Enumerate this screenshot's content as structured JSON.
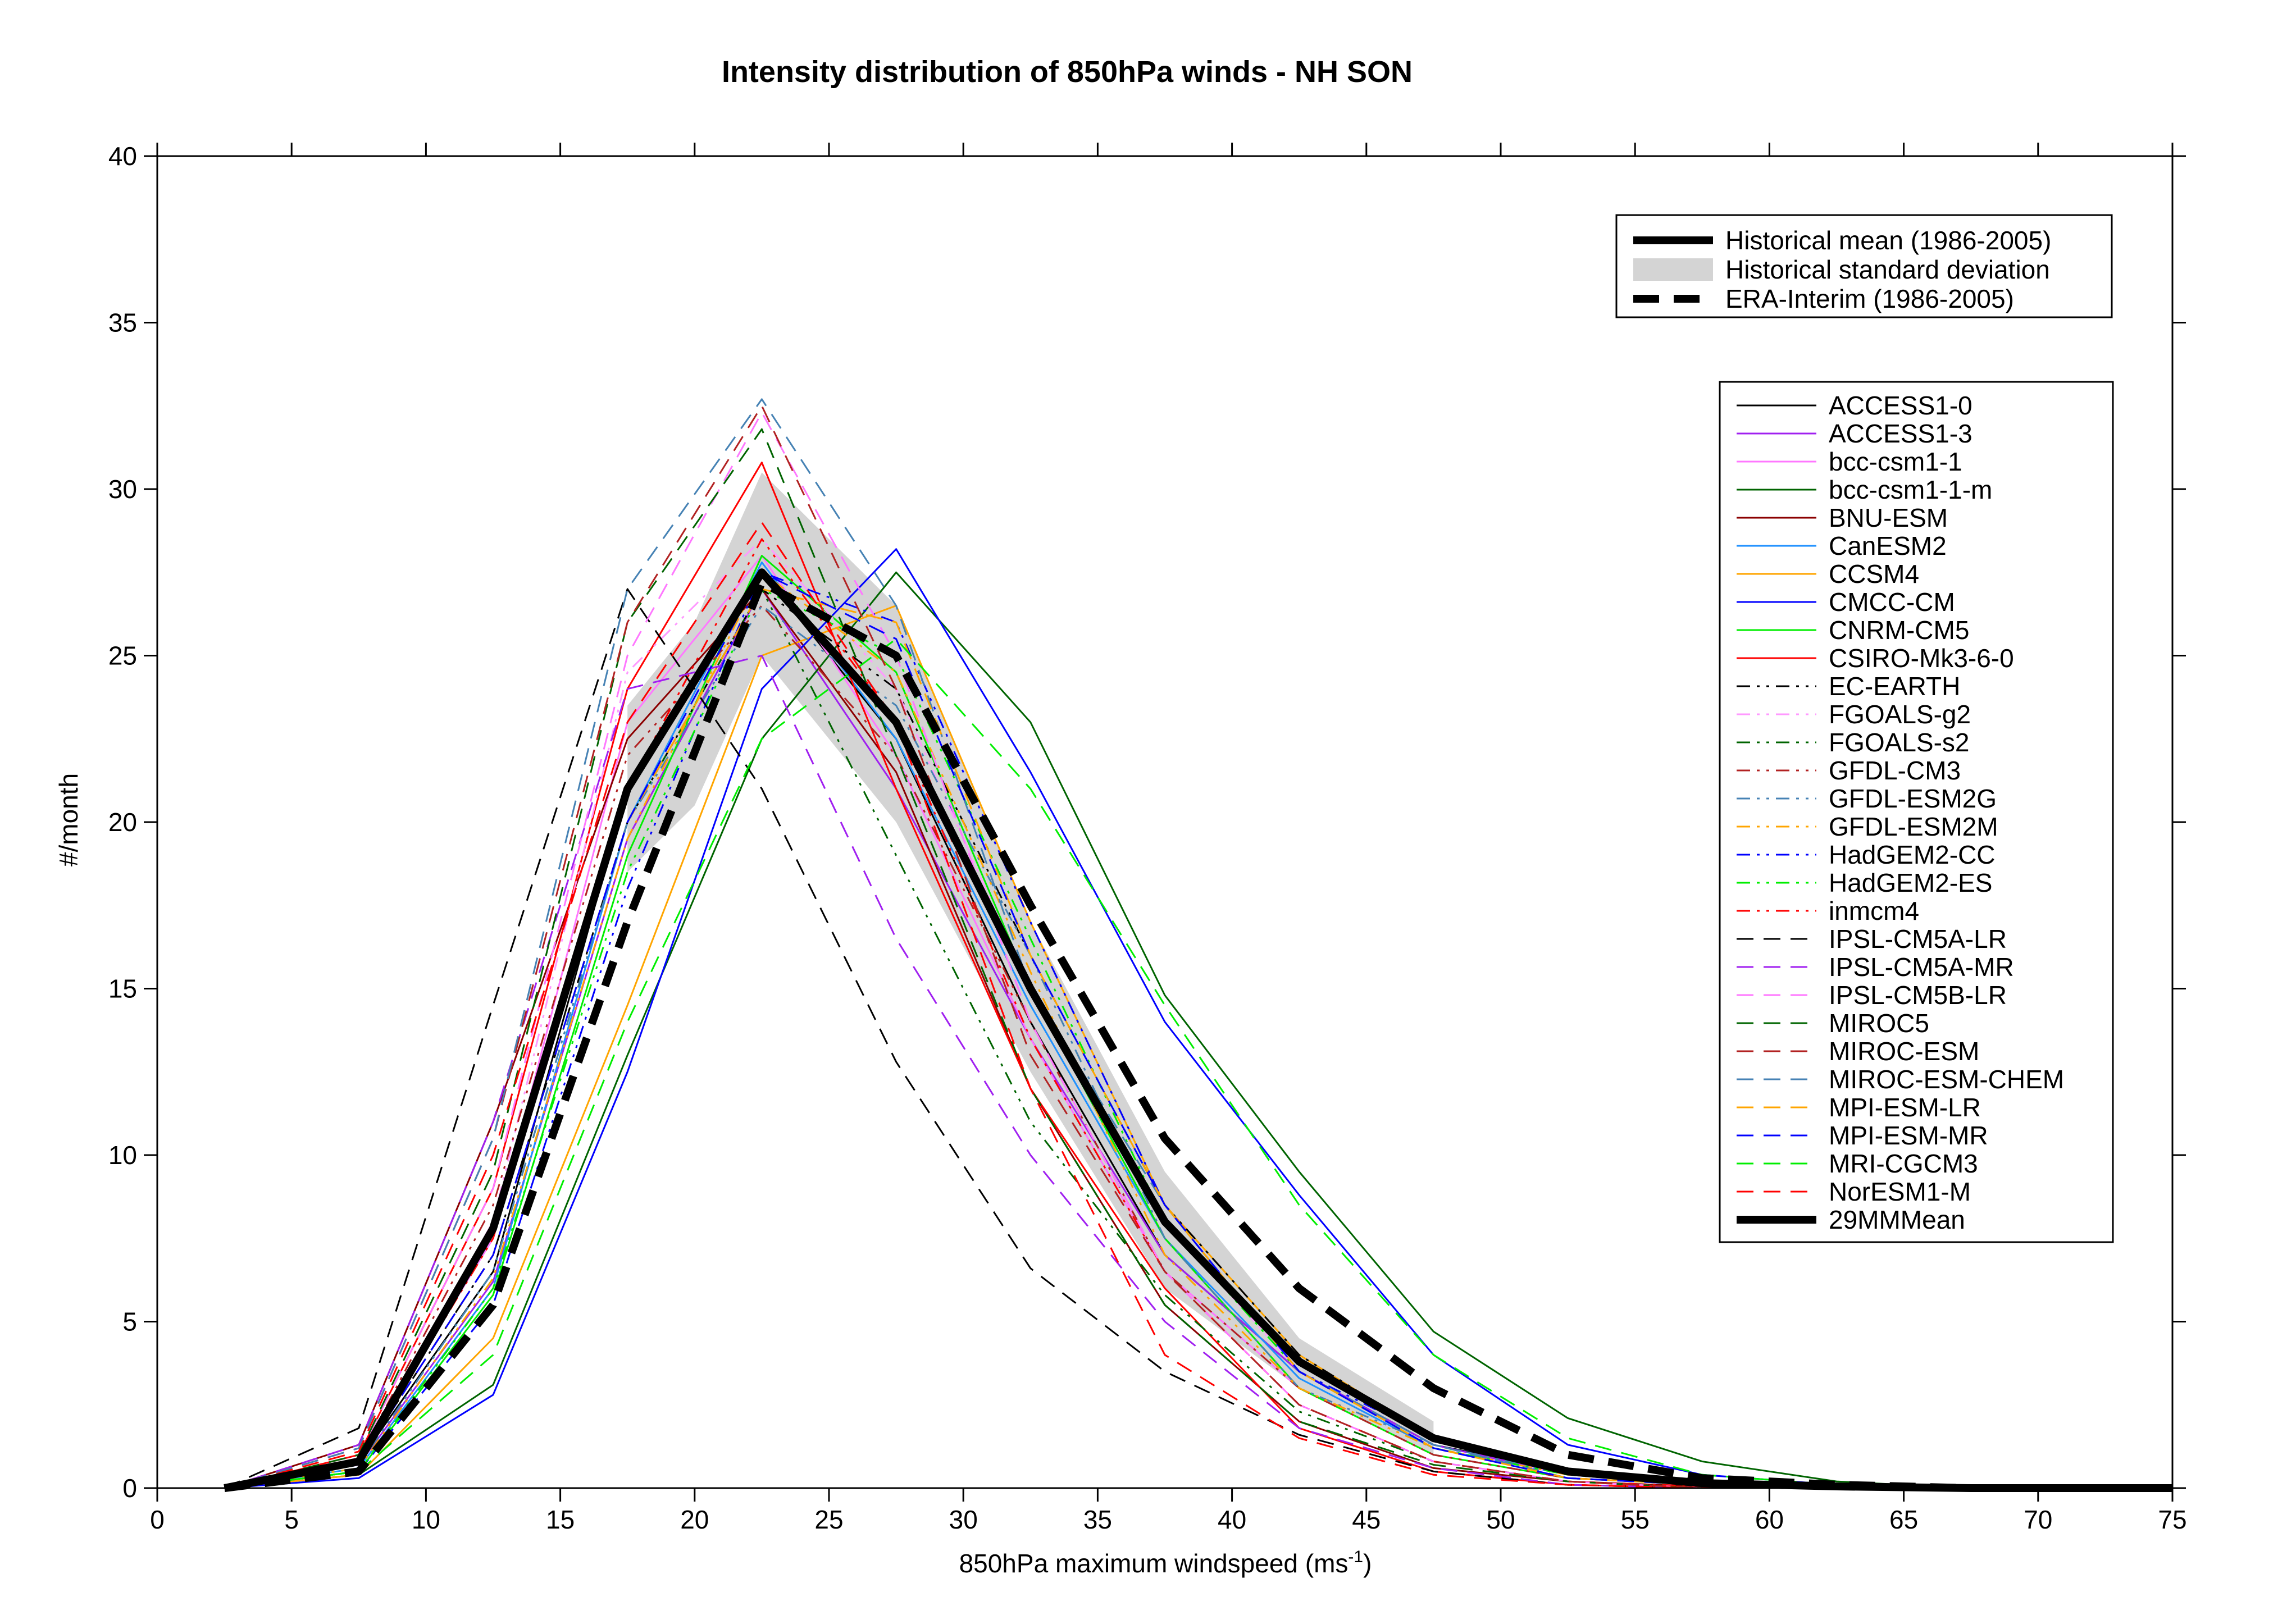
{
  "chart_data": {
    "type": "line",
    "title": "Intensity distribution of 850hPa winds - NH SON",
    "xlabel": "850hPa maximum windspeed (ms",
    "xlabel_sup": "-1",
    "xlabel_end": ")",
    "ylabel": "#/month",
    "xlim": [
      0,
      75
    ],
    "ylim": [
      0,
      40
    ],
    "xticks": [
      "0",
      "5",
      "10",
      "15",
      "20",
      "25",
      "30",
      "35",
      "40",
      "45",
      "50",
      "55",
      "60",
      "65",
      "70",
      "75"
    ],
    "yticks": [
      "0",
      "5",
      "10",
      "15",
      "20",
      "25",
      "30",
      "35",
      "40"
    ],
    "x": [
      2.5,
      7.5,
      12.5,
      17.5,
      22.5,
      27.5,
      32.5,
      37.5,
      42.5,
      47.5,
      52.5,
      57.5,
      62.5,
      67.5,
      72.5,
      75
    ],
    "reference_legend": [
      {
        "name": "Historical mean (1986-2005)",
        "style": "thick-solid"
      },
      {
        "name": "Historical standard deviation",
        "style": "band"
      },
      {
        "name": "ERA-Interim (1986-2005)",
        "style": "thick-dashed"
      }
    ],
    "std_band": {
      "x": [
        17.5,
        20,
        22.5,
        27.5,
        32.5,
        37.5,
        42.5,
        47.5
      ],
      "upper": [
        23.5,
        26,
        30.5,
        26.5,
        17,
        9.5,
        4.5,
        2
      ],
      "lower": [
        18.5,
        20.5,
        25,
        20,
        12.5,
        6,
        3,
        1
      ]
    },
    "historical_mean": [
      0,
      0.8,
      7.8,
      21,
      27.5,
      23,
      15,
      8,
      3.8,
      1.5,
      0.5,
      0.15,
      0.05,
      0,
      0,
      0
    ],
    "era_interim": [
      0,
      0.5,
      5.5,
      17,
      27.2,
      25,
      17.5,
      10.5,
      6,
      3,
      1,
      0.3,
      0.1,
      0,
      0,
      0
    ],
    "series": [
      {
        "name": "ACCESS1-0",
        "color": "#000000",
        "dash": "solid",
        "values": [
          0,
          0.8,
          6.5,
          21,
          27.5,
          22.5,
          14,
          7,
          3.5,
          1.3,
          0.5,
          0.15,
          0.05,
          0,
          0,
          0
        ]
      },
      {
        "name": "ACCESS1-3",
        "color": "#a020f0",
        "dash": "solid",
        "values": [
          0,
          0.7,
          6.2,
          19.5,
          27,
          21,
          13.5,
          7,
          3.5,
          1.3,
          0.4,
          0.1,
          0.05,
          0,
          0,
          0
        ]
      },
      {
        "name": "bcc-csm1-1",
        "color": "#ff77ff",
        "dash": "solid",
        "values": [
          0,
          0.9,
          7.5,
          23,
          28,
          22,
          13.5,
          6.5,
          3,
          1,
          0.3,
          0.1,
          0,
          0,
          0,
          0
        ]
      },
      {
        "name": "bcc-csm1-1-m",
        "color": "#006400",
        "dash": "solid",
        "values": [
          0,
          0.4,
          3.1,
          13,
          22.5,
          27.5,
          23,
          14.8,
          9.5,
          4.7,
          2.1,
          0.8,
          0.2,
          0,
          0,
          0
        ]
      },
      {
        "name": "BNU-ESM",
        "color": "#8b0000",
        "dash": "solid",
        "values": [
          0,
          1.3,
          11,
          22.5,
          27,
          21.5,
          12,
          5.5,
          2,
          0.6,
          0.2,
          0.05,
          0,
          0,
          0,
          0
        ]
      },
      {
        "name": "CanESM2",
        "color": "#1e90ff",
        "dash": "solid",
        "values": [
          0,
          0.6,
          6,
          20,
          27.8,
          22.5,
          14.5,
          7.5,
          3.3,
          1.2,
          0.4,
          0.1,
          0,
          0,
          0,
          0
        ]
      },
      {
        "name": "CCSM4",
        "color": "#ffa500",
        "dash": "solid",
        "values": [
          0,
          0.4,
          4.5,
          14.5,
          25,
          26.5,
          17,
          8.5,
          4,
          1.5,
          0.5,
          0.15,
          0,
          0,
          0,
          0
        ]
      },
      {
        "name": "CMCC-CM",
        "color": "#0000ff",
        "dash": "solid",
        "values": [
          0,
          0.3,
          2.8,
          12.5,
          24,
          28.2,
          21.5,
          14,
          8.8,
          4,
          1.3,
          0.4,
          0.1,
          0,
          0,
          0
        ]
      },
      {
        "name": "CNRM-CM5",
        "color": "#00ee00",
        "dash": "solid",
        "values": [
          0,
          0.5,
          5.8,
          19,
          28,
          24.5,
          15,
          7.5,
          3,
          1,
          0.3,
          0.1,
          0,
          0,
          0,
          0
        ]
      },
      {
        "name": "CSIRO-Mk3-6-0",
        "color": "#ff0000",
        "dash": "solid",
        "values": [
          0,
          1,
          9,
          24,
          30.8,
          21,
          12,
          6,
          1.8,
          0.5,
          0.1,
          0,
          0,
          0,
          0,
          0
        ]
      },
      {
        "name": "EC-EARTH",
        "color": "#000000",
        "dash": "dashdotdot",
        "values": [
          0,
          0.8,
          7,
          20,
          27,
          24,
          16,
          8.5,
          4,
          1.5,
          0.5,
          0.1,
          0,
          0,
          0,
          0
        ]
      },
      {
        "name": "FGOALS-g2",
        "color": "#ff99ff",
        "dash": "dashdotdot",
        "values": [
          0,
          0.9,
          8,
          24.5,
          28.5,
          24,
          15,
          8,
          3.5,
          1.2,
          0.4,
          0.1,
          0,
          0,
          0,
          0
        ]
      },
      {
        "name": "FGOALS-s2",
        "color": "#006400",
        "dash": "dashdotdot",
        "values": [
          0,
          0.7,
          6.5,
          20,
          27,
          19,
          11,
          5.8,
          2.3,
          0.8,
          0.2,
          0.05,
          0,
          0,
          0,
          0
        ]
      },
      {
        "name": "GFDL-CM3",
        "color": "#b22222",
        "dash": "dashdotdot",
        "values": [
          0,
          0.9,
          8.5,
          22,
          26.5,
          22,
          14,
          6.5,
          3,
          1,
          0.3,
          0.1,
          0,
          0,
          0,
          0
        ]
      },
      {
        "name": "GFDL-ESM2G",
        "color": "#4682b4",
        "dash": "dashdotdot",
        "values": [
          0,
          0.7,
          6.5,
          20,
          26.5,
          23.5,
          16,
          7.5,
          3,
          1.3,
          0.4,
          0.1,
          0,
          0,
          0,
          0
        ]
      },
      {
        "name": "GFDL-ESM2M",
        "color": "#ffa500",
        "dash": "dashdotdot",
        "values": [
          0,
          0.6,
          6.3,
          19.5,
          27.5,
          24.5,
          15.5,
          7,
          3,
          1.2,
          0.4,
          0.1,
          0,
          0,
          0,
          0
        ]
      },
      {
        "name": "HadGEM2-CC",
        "color": "#0000ff",
        "dash": "dashdotdot",
        "values": [
          0,
          0.5,
          5.5,
          18,
          27.5,
          26,
          17,
          8.5,
          3.5,
          1.5,
          0.5,
          0.1,
          0,
          0,
          0,
          0
        ]
      },
      {
        "name": "HadGEM2-ES",
        "color": "#00ee00",
        "dash": "dashdotdot",
        "values": [
          0,
          0.5,
          6,
          18.5,
          27,
          25,
          16.5,
          8,
          3.5,
          1.2,
          0.4,
          0.1,
          0,
          0,
          0,
          0
        ]
      },
      {
        "name": "inmcm4",
        "color": "#ff0000",
        "dash": "dashdotdot",
        "values": [
          0,
          0.8,
          7.5,
          21,
          28.5,
          23,
          13.5,
          6.5,
          2.5,
          0.8,
          0.2,
          0.05,
          0,
          0,
          0,
          0
        ]
      },
      {
        "name": "IPSL-CM5A-LR",
        "color": "#000000",
        "dash": "dashed",
        "values": [
          0,
          1.8,
          14.5,
          27,
          21,
          12.8,
          6.6,
          3.5,
          1.6,
          0.5,
          0.1,
          0,
          0,
          0,
          0,
          0
        ]
      },
      {
        "name": "IPSL-CM5A-MR",
        "color": "#a020f0",
        "dash": "dashed",
        "values": [
          0,
          1.3,
          11,
          24,
          25,
          16.5,
          10,
          5,
          1.8,
          0.6,
          0.1,
          0,
          0,
          0,
          0,
          0
        ]
      },
      {
        "name": "IPSL-CM5B-LR",
        "color": "#ff77ff",
        "dash": "dashed",
        "values": [
          0,
          1,
          9,
          25,
          32.3,
          25,
          14,
          6.5,
          2.5,
          0.8,
          0.2,
          0,
          0,
          0,
          0,
          0
        ]
      },
      {
        "name": "MIROC5",
        "color": "#006400",
        "dash": "dashed",
        "values": [
          0,
          1,
          9.5,
          26,
          31.8,
          22,
          12,
          5.5,
          2,
          0.7,
          0.2,
          0,
          0,
          0,
          0,
          0
        ]
      },
      {
        "name": "MIROC-ESM",
        "color": "#b22222",
        "dash": "dashed",
        "values": [
          0,
          1.2,
          10.5,
          26,
          32.5,
          24,
          13,
          6.5,
          2.5,
          0.8,
          0.2,
          0,
          0,
          0,
          0,
          0
        ]
      },
      {
        "name": "MIROC-ESM-CHEM",
        "color": "#4682b4",
        "dash": "dashed",
        "values": [
          0,
          1.2,
          10.5,
          27,
          32.7,
          26.5,
          15,
          8.5,
          3.5,
          1.3,
          0.3,
          0.1,
          0,
          0,
          0,
          0
        ]
      },
      {
        "name": "MPI-ESM-LR",
        "color": "#ffa500",
        "dash": "dashed",
        "values": [
          0,
          0.8,
          7,
          20,
          27,
          26,
          16,
          8.5,
          3.5,
          1.2,
          0.3,
          0.1,
          0,
          0,
          0,
          0
        ]
      },
      {
        "name": "MPI-ESM-MR",
        "color": "#0000ff",
        "dash": "dashed",
        "values": [
          0,
          0.8,
          7,
          20,
          27.5,
          25.5,
          16,
          8.5,
          3.5,
          1.2,
          0.3,
          0.1,
          0,
          0,
          0,
          0
        ]
      },
      {
        "name": "MRI-CGCM3",
        "color": "#00ee00",
        "dash": "dashed",
        "values": [
          0,
          0.5,
          4,
          14,
          22.5,
          25.5,
          21,
          14.5,
          8.5,
          4,
          1.5,
          0.4,
          0.1,
          0,
          0,
          0
        ]
      },
      {
        "name": "NorESM1-M",
        "color": "#ff0000",
        "dash": "dashed",
        "values": [
          0,
          1.1,
          10,
          23,
          29,
          23,
          12,
          4,
          1.5,
          0.4,
          0.1,
          0,
          0,
          0,
          0,
          0
        ]
      },
      {
        "name": "29MMMean",
        "color": "#000000",
        "dash": "thick-solid",
        "values": [
          0,
          0.8,
          7.8,
          21,
          27.5,
          23,
          15,
          8,
          3.8,
          1.5,
          0.5,
          0.15,
          0.05,
          0,
          0,
          0
        ]
      }
    ],
    "grid": false,
    "legend_positions": [
      "upper-right",
      "right"
    ]
  }
}
